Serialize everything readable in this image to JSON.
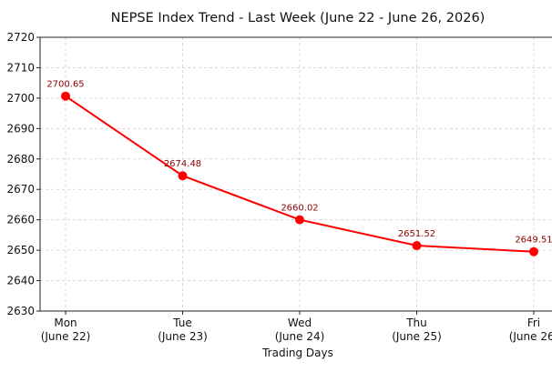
{
  "chart_data": {
    "type": "line",
    "title": "NEPSE Index Trend - Last Week (June 22 - June 26, 2026)",
    "xlabel": "Trading Days",
    "ylabel": "",
    "categories": [
      [
        "Mon",
        "(June 22)"
      ],
      [
        "Tue",
        "(June 23)"
      ],
      [
        "Wed",
        "(June 24)"
      ],
      [
        "Thu",
        "(June 25)"
      ],
      [
        "Fri",
        "(June 26)"
      ]
    ],
    "series": [
      {
        "values": [
          2700.65,
          2674.48,
          2660.02,
          2651.52,
          2649.51
        ],
        "labels": [
          "2700.65",
          "2674.48",
          "2660.02",
          "2651.52",
          "2649.51"
        ],
        "color": "#ff0000",
        "label_color": "#8b0000"
      }
    ],
    "ylim": [
      2630,
      2720
    ],
    "yticks": [
      2630,
      2640,
      2650,
      2660,
      2670,
      2680,
      2690,
      2700,
      2710,
      2720
    ],
    "grid": true
  }
}
